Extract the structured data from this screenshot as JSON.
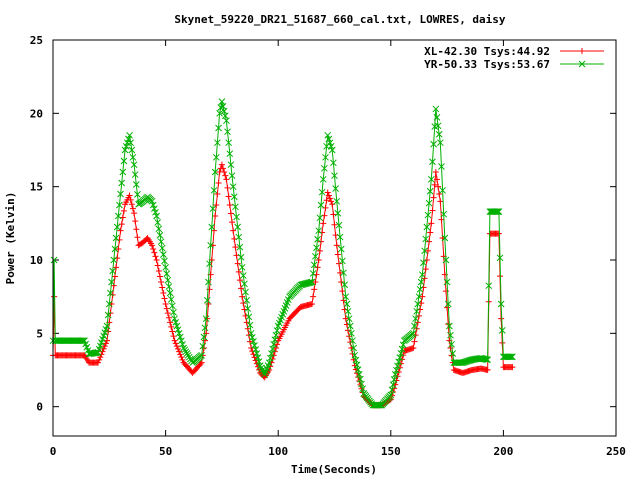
{
  "chart_data": {
    "type": "line",
    "title": "Skynet_59220_DR21_51687_660_cal.txt, LOWRES, daisy",
    "xlabel": "Time(Seconds)",
    "ylabel": "Power (Kelvin)",
    "xlim": [
      0,
      250
    ],
    "ylim": [
      -2,
      25
    ],
    "xticks": [
      "0",
      "50",
      "100",
      "150",
      "200",
      "250"
    ],
    "yticks": [
      "0",
      "5",
      "10",
      "15",
      "20",
      "25"
    ],
    "grid": false,
    "legend_position": "top-right",
    "series": [
      {
        "name": "XL-42.30 Tsys:44.92",
        "color": "#ff0000",
        "marker": "plus",
        "x": [
          0,
          0.5,
          1,
          2,
          5,
          10,
          14,
          16,
          20,
          24,
          26,
          28,
          30,
          32,
          34,
          36,
          38,
          40,
          42,
          44,
          46,
          50,
          54,
          58,
          62,
          66,
          68,
          70,
          72,
          74,
          75,
          77,
          80,
          84,
          88,
          92,
          94,
          96,
          100,
          105,
          110,
          115,
          118,
          120,
          122,
          124,
          126,
          130,
          134,
          138,
          142,
          146,
          150,
          152,
          156,
          160,
          164,
          168,
          170,
          172,
          174,
          176,
          178,
          182,
          186,
          190,
          193,
          194,
          195,
          196,
          197,
          198,
          199,
          200,
          202,
          204
        ],
        "y": [
          3.5,
          7.5,
          3.5,
          3.5,
          3.5,
          3.5,
          3.5,
          3.0,
          3.0,
          4.5,
          7.0,
          9.5,
          12.0,
          13.8,
          14.4,
          13.2,
          11.0,
          11.2,
          11.5,
          11.0,
          10.0,
          7.0,
          4.5,
          3.0,
          2.3,
          3.0,
          5.0,
          9.0,
          13.0,
          16.0,
          16.5,
          15.5,
          12.0,
          7.5,
          4.0,
          2.3,
          2.0,
          2.5,
          4.5,
          6.0,
          6.8,
          7.0,
          10.0,
          12.5,
          14.6,
          13.8,
          11.0,
          6.0,
          2.8,
          0.7,
          0.1,
          0.1,
          0.5,
          1.5,
          3.8,
          4.0,
          7.5,
          12.5,
          16.0,
          14.0,
          9.0,
          4.5,
          2.5,
          2.3,
          2.5,
          2.6,
          2.5,
          11.8,
          11.8,
          11.8,
          11.8,
          11.8,
          6.0,
          2.7,
          2.7,
          2.7
        ]
      },
      {
        "name": "YR-50.33 Tsys:53.67",
        "color": "#00b000",
        "marker": "cross",
        "x": [
          0,
          0.5,
          1,
          2,
          5,
          10,
          14,
          16,
          20,
          24,
          26,
          28,
          30,
          32,
          34,
          36,
          38,
          40,
          42,
          44,
          46,
          50,
          54,
          58,
          62,
          66,
          68,
          70,
          72,
          74,
          75,
          77,
          80,
          84,
          88,
          92,
          94,
          96,
          100,
          105,
          110,
          115,
          118,
          120,
          122,
          124,
          126,
          130,
          134,
          138,
          142,
          146,
          150,
          152,
          156,
          160,
          164,
          168,
          170,
          172,
          174,
          176,
          178,
          182,
          186,
          190,
          193,
          194,
          195,
          196,
          197,
          198,
          199,
          200,
          202,
          204
        ],
        "y": [
          4.5,
          10.0,
          4.5,
          4.5,
          4.5,
          4.5,
          4.5,
          3.6,
          3.7,
          5.5,
          8.5,
          11.5,
          14.5,
          17.5,
          18.5,
          16.5,
          13.8,
          14.0,
          14.3,
          14.0,
          13.0,
          9.5,
          6.0,
          4.0,
          3.0,
          3.5,
          6.0,
          11.0,
          16.0,
          20.0,
          20.8,
          19.5,
          15.0,
          9.5,
          5.0,
          2.8,
          2.2,
          3.0,
          5.5,
          7.5,
          8.3,
          8.5,
          12.0,
          15.5,
          18.5,
          17.5,
          14.0,
          7.5,
          3.5,
          0.9,
          0.1,
          0.1,
          0.8,
          2.2,
          4.5,
          5.0,
          9.0,
          15.5,
          20.3,
          18.0,
          11.5,
          5.5,
          3.0,
          3.0,
          3.2,
          3.3,
          3.2,
          13.3,
          13.3,
          13.3,
          13.3,
          13.3,
          7.0,
          3.4,
          3.4,
          3.4
        ]
      }
    ]
  }
}
